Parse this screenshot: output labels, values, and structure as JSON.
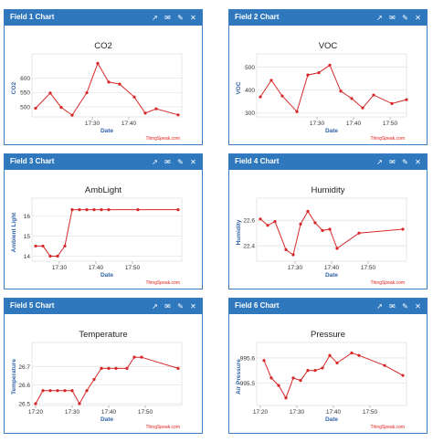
{
  "panels": [
    {
      "header": "Field 1 Chart",
      "chart_data": {
        "type": "line",
        "title": "CO2",
        "xlabel": "Date",
        "ylabel": "CO2",
        "credit": "ThingSpeak.com",
        "x_ticks": [
          {
            "v": 17.5,
            "label": "17:30"
          },
          {
            "v": 27.5,
            "label": "17:40"
          }
        ],
        "y_ticks": [
          500,
          550,
          600
        ],
        "xlim": [
          1,
          42
        ],
        "ylim": [
          465,
          665
        ],
        "points": [
          [
            2,
            495
          ],
          [
            6,
            548
          ],
          [
            9,
            498
          ],
          [
            12,
            471
          ],
          [
            16,
            549
          ],
          [
            19,
            651
          ],
          [
            22,
            586
          ],
          [
            25,
            579
          ],
          [
            29,
            534
          ],
          [
            32,
            478
          ],
          [
            35,
            493
          ],
          [
            41,
            472
          ]
        ]
      }
    },
    {
      "header": "Field 2 Chart",
      "chart_data": {
        "type": "line",
        "title": "VOC",
        "xlabel": "Date",
        "ylabel": "VOC",
        "credit": "ThingSpeak.com",
        "x_ticks": [
          {
            "v": 17.5,
            "label": "17:30"
          },
          {
            "v": 27.5,
            "label": "17:40"
          },
          {
            "v": 37.5,
            "label": "17:50"
          }
        ],
        "y_ticks": [
          300,
          400,
          500
        ],
        "xlim": [
          1,
          42
        ],
        "ylim": [
          283,
          533
        ],
        "points": [
          [
            2,
            370
          ],
          [
            5,
            442
          ],
          [
            8,
            374
          ],
          [
            12,
            306
          ],
          [
            15,
            465
          ],
          [
            18,
            475
          ],
          [
            21,
            508
          ],
          [
            24,
            395
          ],
          [
            27,
            363
          ],
          [
            30,
            322
          ],
          [
            33,
            378
          ],
          [
            38,
            341
          ],
          [
            42,
            358
          ]
        ]
      }
    },
    {
      "header": "Field 3 Chart",
      "chart_data": {
        "type": "line",
        "title": "AmbLight",
        "xlabel": "Date",
        "ylabel": "Ambient Light",
        "credit": "ThingSpeak.com",
        "x_ticks": [
          {
            "v": 17.5,
            "label": "17:30"
          },
          {
            "v": 27.5,
            "label": "17:40"
          },
          {
            "v": 37.5,
            "label": "17:50"
          }
        ],
        "y_ticks": [
          14,
          15,
          16
        ],
        "xlim": [
          10,
          51
        ],
        "ylim": [
          13.75,
          16.6
        ],
        "points": [
          [
            11,
            14.5
          ],
          [
            13,
            14.5
          ],
          [
            15,
            14.0
          ],
          [
            17,
            14.0
          ],
          [
            19,
            14.5
          ],
          [
            21,
            16.3
          ],
          [
            23,
            16.3
          ],
          [
            25,
            16.3
          ],
          [
            27,
            16.3
          ],
          [
            29,
            16.3
          ],
          [
            31,
            16.3
          ],
          [
            39,
            16.3
          ],
          [
            50,
            16.3
          ]
        ]
      }
    },
    {
      "header": "Field 4 Chart",
      "chart_data": {
        "type": "line",
        "title": "Humidity",
        "xlabel": "Date",
        "ylabel": "Humidity",
        "credit": "ThingSpeak.com",
        "x_ticks": [
          {
            "v": 27.5,
            "label": "17:30"
          },
          {
            "v": 37.5,
            "label": "17:40"
          },
          {
            "v": 47.5,
            "label": "17:50"
          }
        ],
        "y_ticks": [
          22.4,
          22.6
        ],
        "xlim": [
          17,
          58
        ],
        "ylim": [
          22.28,
          22.73
        ],
        "points": [
          [
            18,
            22.61
          ],
          [
            20,
            22.56
          ],
          [
            22,
            22.59
          ],
          [
            25,
            22.37
          ],
          [
            27,
            22.33
          ],
          [
            29,
            22.57
          ],
          [
            31,
            22.67
          ],
          [
            33,
            22.58
          ],
          [
            35,
            22.52
          ],
          [
            37,
            22.53
          ],
          [
            39,
            22.38
          ],
          [
            45,
            22.5
          ],
          [
            57,
            22.53
          ]
        ]
      }
    },
    {
      "header": "Field 5 Chart",
      "chart_data": {
        "type": "line",
        "title": "Temperature",
        "xlabel": "Date",
        "ylabel": "Temperature",
        "credit": "ThingSpeak.com",
        "x_ticks": [
          {
            "v": 20,
            "label": "17:20"
          },
          {
            "v": 30,
            "label": "17:30"
          },
          {
            "v": 40,
            "label": "17:40"
          },
          {
            "v": 50,
            "label": "17:50"
          }
        ],
        "y_ticks": [
          26.5,
          26.6,
          26.7
        ],
        "xlim": [
          19,
          60
        ],
        "ylim": [
          26.49,
          26.8
        ],
        "points": [
          [
            20,
            26.5
          ],
          [
            22,
            26.57
          ],
          [
            24,
            26.57
          ],
          [
            26,
            26.57
          ],
          [
            28,
            26.57
          ],
          [
            30,
            26.57
          ],
          [
            32,
            26.5
          ],
          [
            34,
            26.57
          ],
          [
            36,
            26.63
          ],
          [
            38,
            26.69
          ],
          [
            40,
            26.69
          ],
          [
            42,
            26.69
          ],
          [
            45,
            26.69
          ],
          [
            47,
            26.75
          ],
          [
            49,
            26.75
          ],
          [
            59,
            26.69
          ]
        ]
      }
    },
    {
      "header": "Field 6 Chart",
      "chart_data": {
        "type": "line",
        "title": "Pressure",
        "xlabel": "Date",
        "ylabel": "Air Pressure",
        "credit": "ThingSpeak.com",
        "x_ticks": [
          {
            "v": 20,
            "label": "17:20"
          },
          {
            "v": 30,
            "label": "17:30"
          },
          {
            "v": 40,
            "label": "17:40"
          },
          {
            "v": 50,
            "label": "17:50"
          }
        ],
        "y_ticks": [
          995.5,
          995.6
        ],
        "xlim": [
          19,
          60
        ],
        "ylim": [
          995.41,
          995.64
        ],
        "points": [
          [
            21,
            995.59
          ],
          [
            23,
            995.52
          ],
          [
            25,
            995.49
          ],
          [
            27,
            995.44
          ],
          [
            29,
            995.52
          ],
          [
            31,
            995.51
          ],
          [
            33,
            995.55
          ],
          [
            35,
            995.55
          ],
          [
            37,
            995.56
          ],
          [
            39,
            995.61
          ],
          [
            41,
            995.58
          ],
          [
            45,
            995.62
          ],
          [
            47,
            995.61
          ],
          [
            54,
            995.57
          ],
          [
            59,
            995.53
          ]
        ]
      }
    }
  ],
  "header_icons": [
    "external-link-icon",
    "comment-icon",
    "pencil-icon",
    "close-icon"
  ],
  "colors": {
    "header": "#2f78be",
    "line": "#d62728",
    "label": "#2f64a8",
    "credit": "#e0201c",
    "grid": "#e4e4e4"
  }
}
